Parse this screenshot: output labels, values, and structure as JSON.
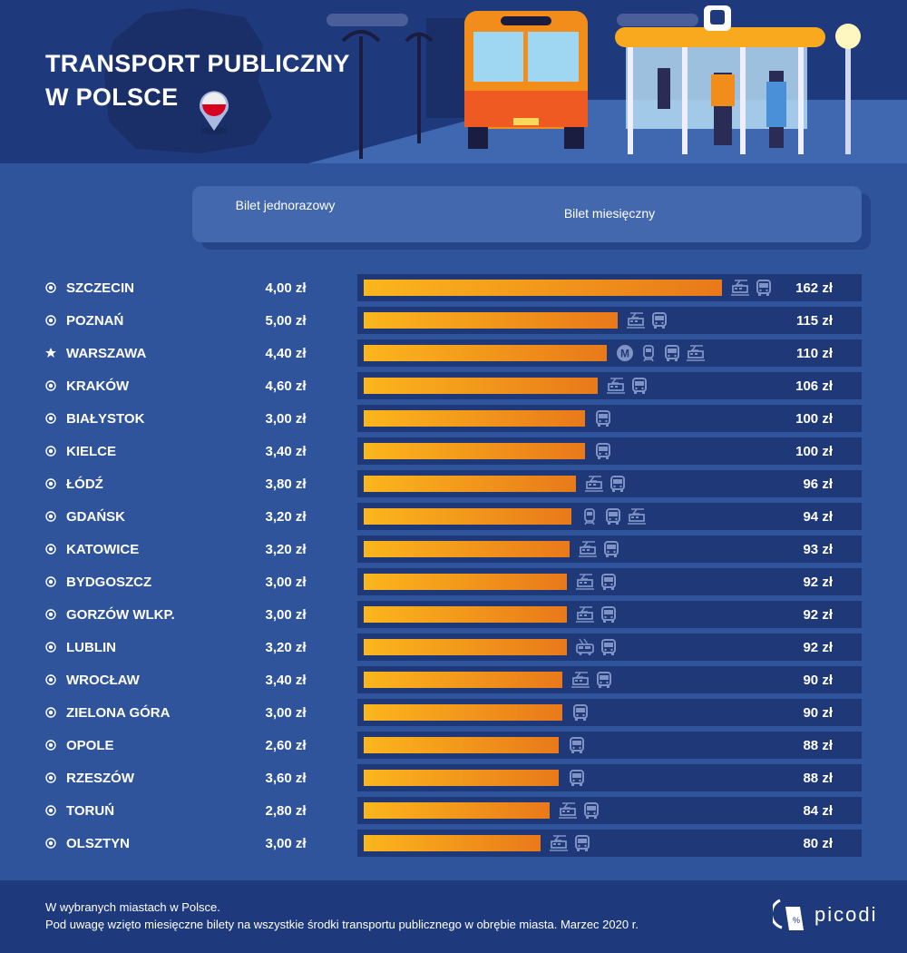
{
  "header": {
    "title_line1": "TRANSPORT PUBLICZNY",
    "title_line2": "W POLSCE"
  },
  "table_header": {
    "single": "Bilet jednorazowy",
    "monthly": "Bilet miesięczny"
  },
  "colors": {
    "bar_start": "#fbb61c",
    "bar_end": "#e9791a",
    "track": "#1f3878",
    "background": "#30549b"
  },
  "chart_data": {
    "type": "bar",
    "orientation": "horizontal",
    "title": "TRANSPORT PUBLICZNY W POLSCE",
    "columns": [
      "Bilet jednorazowy",
      "Bilet miesięczny"
    ],
    "xlim": [
      0,
      162
    ],
    "unit": "zł",
    "rows": [
      {
        "city": "SZCZECIN",
        "marker": "circle",
        "single": "4,00 zł",
        "monthly": 162,
        "monthly_label": "162 zł",
        "modes": [
          "tram",
          "bus"
        ]
      },
      {
        "city": "POZNAŃ",
        "marker": "circle",
        "single": "5,00 zł",
        "monthly": 115,
        "monthly_label": "115 zł",
        "modes": [
          "tram",
          "bus"
        ]
      },
      {
        "city": "WARSZAWA",
        "marker": "star",
        "single": "4,40 zł",
        "monthly": 110,
        "monthly_label": "110 zł",
        "modes": [
          "metro",
          "train",
          "bus",
          "tram"
        ]
      },
      {
        "city": "KRAKÓW",
        "marker": "circle",
        "single": "4,60 zł",
        "monthly": 106,
        "monthly_label": "106 zł",
        "modes": [
          "tram",
          "bus"
        ]
      },
      {
        "city": "BIAŁYSTOK",
        "marker": "circle",
        "single": "3,00 zł",
        "monthly": 100,
        "monthly_label": "100 zł",
        "modes": [
          "bus"
        ]
      },
      {
        "city": "KIELCE",
        "marker": "circle",
        "single": "3,40 zł",
        "monthly": 100,
        "monthly_label": "100 zł",
        "modes": [
          "bus"
        ]
      },
      {
        "city": "ŁÓDŹ",
        "marker": "circle",
        "single": "3,80 zł",
        "monthly": 96,
        "monthly_label": "96 zł",
        "modes": [
          "tram",
          "bus"
        ]
      },
      {
        "city": "GDAŃSK",
        "marker": "circle",
        "single": "3,20 zł",
        "monthly": 94,
        "monthly_label": "94 zł",
        "modes": [
          "train",
          "bus",
          "tram"
        ]
      },
      {
        "city": "KATOWICE",
        "marker": "circle",
        "single": "3,20 zł",
        "monthly": 93,
        "monthly_label": "93 zł",
        "modes": [
          "tram",
          "bus"
        ]
      },
      {
        "city": "BYDGOSZCZ",
        "marker": "circle",
        "single": "3,00 zł",
        "monthly": 92,
        "monthly_label": "92 zł",
        "modes": [
          "tram",
          "bus"
        ]
      },
      {
        "city": "GORZÓW WLKP.",
        "marker": "circle",
        "single": "3,00 zł",
        "monthly": 92,
        "monthly_label": "92 zł",
        "modes": [
          "tram",
          "bus"
        ]
      },
      {
        "city": "LUBLIN",
        "marker": "circle",
        "single": "3,20 zł",
        "monthly": 92,
        "monthly_label": "92 zł",
        "modes": [
          "trolleybus",
          "bus"
        ]
      },
      {
        "city": "WROCŁAW",
        "marker": "circle",
        "single": "3,40 zł",
        "monthly": 90,
        "monthly_label": "90 zł",
        "modes": [
          "tram",
          "bus"
        ]
      },
      {
        "city": "ZIELONA GÓRA",
        "marker": "circle",
        "single": "3,00 zł",
        "monthly": 90,
        "monthly_label": "90 zł",
        "modes": [
          "bus"
        ]
      },
      {
        "city": "OPOLE",
        "marker": "circle",
        "single": "2,60 zł",
        "monthly": 88,
        "monthly_label": "88 zł",
        "modes": [
          "bus"
        ]
      },
      {
        "city": "RZESZÓW",
        "marker": "circle",
        "single": "3,60 zł",
        "monthly": 88,
        "monthly_label": "88 zł",
        "modes": [
          "bus"
        ]
      },
      {
        "city": "TORUŃ",
        "marker": "circle",
        "single": "2,80 zł",
        "monthly": 84,
        "monthly_label": "84 zł",
        "modes": [
          "tram",
          "bus"
        ]
      },
      {
        "city": "OLSZTYN",
        "marker": "circle",
        "single": "3,00 zł",
        "monthly": 80,
        "monthly_label": "80 zł",
        "modes": [
          "tram",
          "bus"
        ]
      }
    ]
  },
  "footer": {
    "note1": "W wybranych miastach w Polsce.",
    "note2": "Pod uwagę wzięto miesięczne bilety na wszystkie środki transportu publicznego w obrębie miasta. Marzec 2020 r.",
    "logo": "picodi"
  }
}
